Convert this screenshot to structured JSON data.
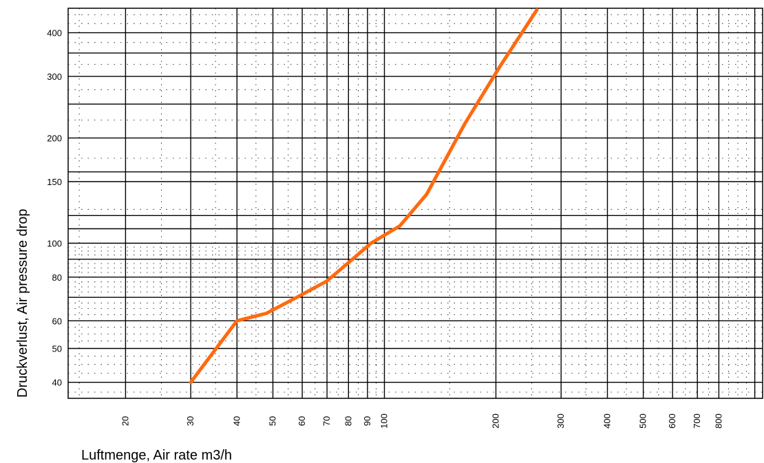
{
  "chart_data": {
    "type": "line",
    "title": "",
    "xlabel": "Luftmenge, Air rate m3/h",
    "ylabel": "Druckverlust, Air pressure drop",
    "x_scale": "log",
    "y_scale": "log",
    "xlim": [
      14,
      1050
    ],
    "ylim": [
      36,
      470
    ],
    "grid": true,
    "x_ticks": [
      20,
      30,
      40,
      50,
      60,
      70,
      80,
      90,
      100,
      200,
      300,
      400,
      500,
      600,
      700,
      800
    ],
    "y_ticks": [
      40,
      50,
      60,
      80,
      100,
      150,
      200,
      300,
      400
    ],
    "series": [
      {
        "color": "#ff6a10",
        "x": [
          30,
          40,
          48,
          58,
          70,
          82,
          92,
          110,
          130,
          165,
          205,
          258
        ],
        "y": [
          40,
          60,
          63,
          70,
          78,
          90,
          100,
          112,
          138,
          220,
          320,
          465
        ]
      }
    ]
  }
}
